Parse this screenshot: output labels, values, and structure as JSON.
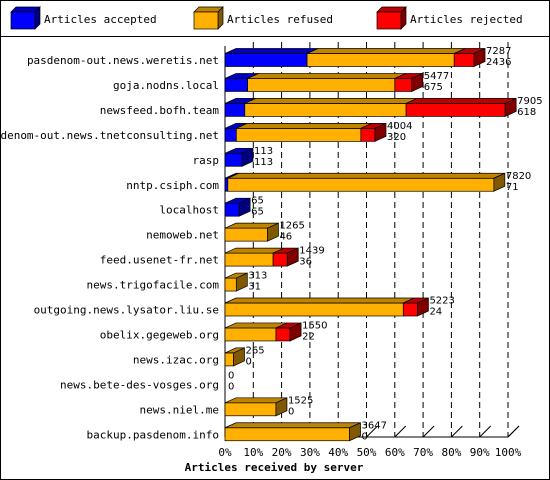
{
  "chart_data": {
    "type": "bar",
    "orientation": "horizontal",
    "stacked": true,
    "percent_scale": true,
    "xlabel": "Articles received by server",
    "ticks": [
      "0%",
      "10%",
      "20%",
      "30%",
      "40%",
      "50%",
      "60%",
      "70%",
      "80%",
      "90%",
      "100%"
    ],
    "legend_position": "top",
    "series": [
      {
        "name": "Articles accepted",
        "color": "#0000ff"
      },
      {
        "name": "Articles refused",
        "color": "#ffb000"
      },
      {
        "name": "Articles rejected",
        "color": "#ff0000"
      }
    ],
    "rows": [
      {
        "server": "pasdenom-out.news.weretis.net",
        "pct": {
          "accepted": 29,
          "refused": 52,
          "rejected": 7
        },
        "label_total": "7287",
        "label_second": "2436"
      },
      {
        "server": "goja.nodns.local",
        "pct": {
          "accepted": 8,
          "refused": 52,
          "rejected": 6
        },
        "label_total": "5477",
        "label_second": "675"
      },
      {
        "server": "newsfeed.bofh.team",
        "pct": {
          "accepted": 7,
          "refused": 57,
          "rejected": 35
        },
        "label_total": "7905",
        "label_second": "618"
      },
      {
        "server": "pasdenom-out.news.tnetconsulting.net",
        "pct": {
          "accepted": 4,
          "refused": 44,
          "rejected": 5
        },
        "label_total": "4004",
        "label_second": "320"
      },
      {
        "server": "rasp",
        "pct": {
          "accepted": 6,
          "refused": 0,
          "rejected": 0
        },
        "label_total": "113",
        "label_second": "113"
      },
      {
        "server": "nntp.csiph.com",
        "pct": {
          "accepted": 1,
          "refused": 94,
          "rejected": 0
        },
        "label_total": "7820",
        "label_second": "71"
      },
      {
        "server": "localhost",
        "pct": {
          "accepted": 5,
          "refused": 0,
          "rejected": 0
        },
        "label_total": "65",
        "label_second": "65"
      },
      {
        "server": "nemoweb.net",
        "pct": {
          "accepted": 0,
          "refused": 15,
          "rejected": 0
        },
        "label_total": "1265",
        "label_second": "46"
      },
      {
        "server": "feed.usenet-fr.net",
        "pct": {
          "accepted": 0,
          "refused": 17,
          "rejected": 5
        },
        "label_total": "1439",
        "label_second": "36"
      },
      {
        "server": "news.trigofacile.com",
        "pct": {
          "accepted": 0,
          "refused": 4,
          "rejected": 0
        },
        "label_total": "313",
        "label_second": "31"
      },
      {
        "server": "outgoing.news.lysator.liu.se",
        "pct": {
          "accepted": 0,
          "refused": 63,
          "rejected": 5
        },
        "label_total": "5223",
        "label_second": "24"
      },
      {
        "server": "obelix.gegeweb.org",
        "pct": {
          "accepted": 0,
          "refused": 18,
          "rejected": 5
        },
        "label_total": "1550",
        "label_second": "22"
      },
      {
        "server": "news.izac.org",
        "pct": {
          "accepted": 0,
          "refused": 3,
          "rejected": 0
        },
        "label_total": "265",
        "label_second": "0"
      },
      {
        "server": "news.bete-des-vosges.org",
        "pct": {
          "accepted": 0,
          "refused": 0,
          "rejected": 0
        },
        "label_total": "0",
        "label_second": "0"
      },
      {
        "server": "news.niel.me",
        "pct": {
          "accepted": 0,
          "refused": 18,
          "rejected": 0
        },
        "label_total": "1525",
        "label_second": "0"
      },
      {
        "server": "backup.pasdenom.info",
        "pct": {
          "accepted": 0,
          "refused": 44,
          "rejected": 0
        },
        "label_total": "3647",
        "label_second": "0"
      }
    ]
  }
}
